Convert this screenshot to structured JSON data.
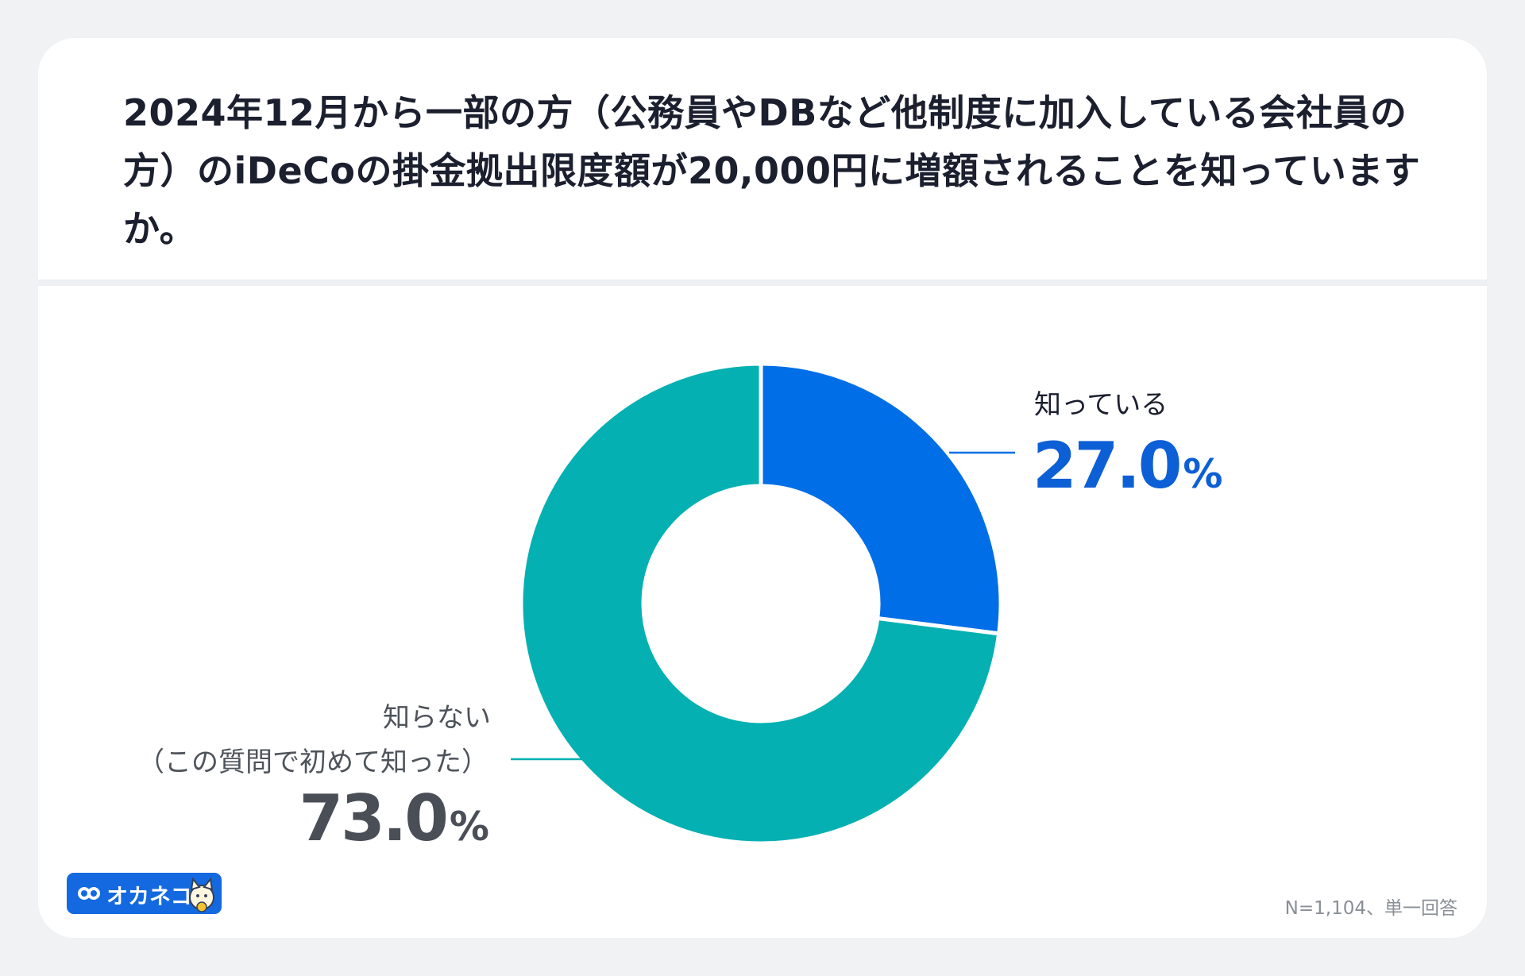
{
  "question": "2024年12月から一部の方（公務員やDBなど他制度に加入している会社員の方）のiDeCoの掛金拠出限度額が20,000円に増額されることを知っていますか。",
  "chart_data": {
    "type": "pie",
    "style": "donut",
    "slices": [
      {
        "label": "知っている",
        "value": 27.0,
        "display": "27.0",
        "color": "#006ee6"
      },
      {
        "label_lines": [
          "知らない",
          "（この質問で初めて知った）"
        ],
        "value": 73.0,
        "display": "73.0",
        "color": "#04b0b2"
      }
    ],
    "unit": "%"
  },
  "footer": {
    "note": "N=1,104、単一回答",
    "logo_text": "オカネコ"
  },
  "colors": {
    "background": "#f1f2f4",
    "card": "#ffffff",
    "known": "#006ee6",
    "unknown": "#04b0b2",
    "known_text": "#0d5fd6",
    "unknown_text": "#4a4f57",
    "brand": "#1469e0"
  }
}
